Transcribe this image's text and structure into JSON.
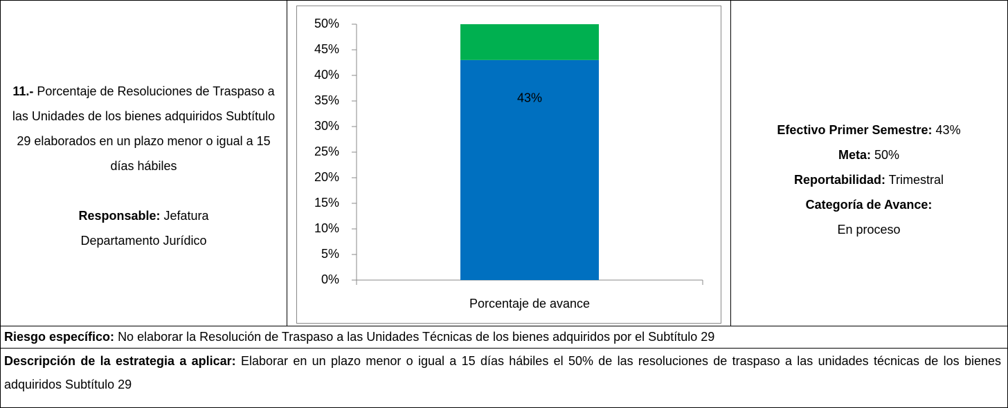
{
  "indicator": {
    "number": "11.-",
    "title": "Porcentaje de Resoluciones de Traspaso a las Unidades de los bienes adquiridos Subtítulo 29 elaborados en un plazo menor o igual a 15 días hábiles",
    "responsible_label": "Responsable:",
    "responsible": "Jefatura Departamento Jurídico"
  },
  "chart_data": {
    "type": "stacked_bar",
    "categories": [
      "Porcentaje de avance"
    ],
    "series": [
      {
        "color": "#0070c0",
        "values": [
          43
        ],
        "value_labels": [
          "43%"
        ]
      },
      {
        "color": "#00b050",
        "values": [
          7
        ]
      }
    ],
    "ylim": [
      0,
      50
    ],
    "yticks": [
      {
        "value": 0,
        "label": "0%"
      },
      {
        "value": 5,
        "label": "5%"
      },
      {
        "value": 10,
        "label": "10%"
      },
      {
        "value": 15,
        "label": "15%"
      },
      {
        "value": 20,
        "label": "20%"
      },
      {
        "value": 25,
        "label": "25%"
      },
      {
        "value": 30,
        "label": "30%"
      },
      {
        "value": 35,
        "label": "35%"
      },
      {
        "value": 40,
        "label": "40%"
      },
      {
        "value": 45,
        "label": "45%"
      },
      {
        "value": 50,
        "label": "50%"
      }
    ]
  },
  "status": {
    "items": [
      {
        "label": "Efectivo Primer Semestre:",
        "value": "43%"
      },
      {
        "label": "Meta:",
        "value": "50%"
      },
      {
        "label": "Reportabilidad:",
        "value": "Trimestral"
      },
      {
        "label": "Categoría de Avance:",
        "value": "En proceso"
      }
    ]
  },
  "risk": {
    "label": "Riesgo específico:",
    "text": "No elaborar la Resolución de Traspaso a las Unidades Técnicas de los bienes adquiridos por el Subtítulo 29"
  },
  "strategy": {
    "label": "Descripción de la estrategia a aplicar:",
    "text": "Elaborar en un plazo menor o igual a 15 días hábiles el 50% de las resoluciones de traspaso a las unidades técnicas de los bienes adquiridos Subtítulo 29"
  }
}
